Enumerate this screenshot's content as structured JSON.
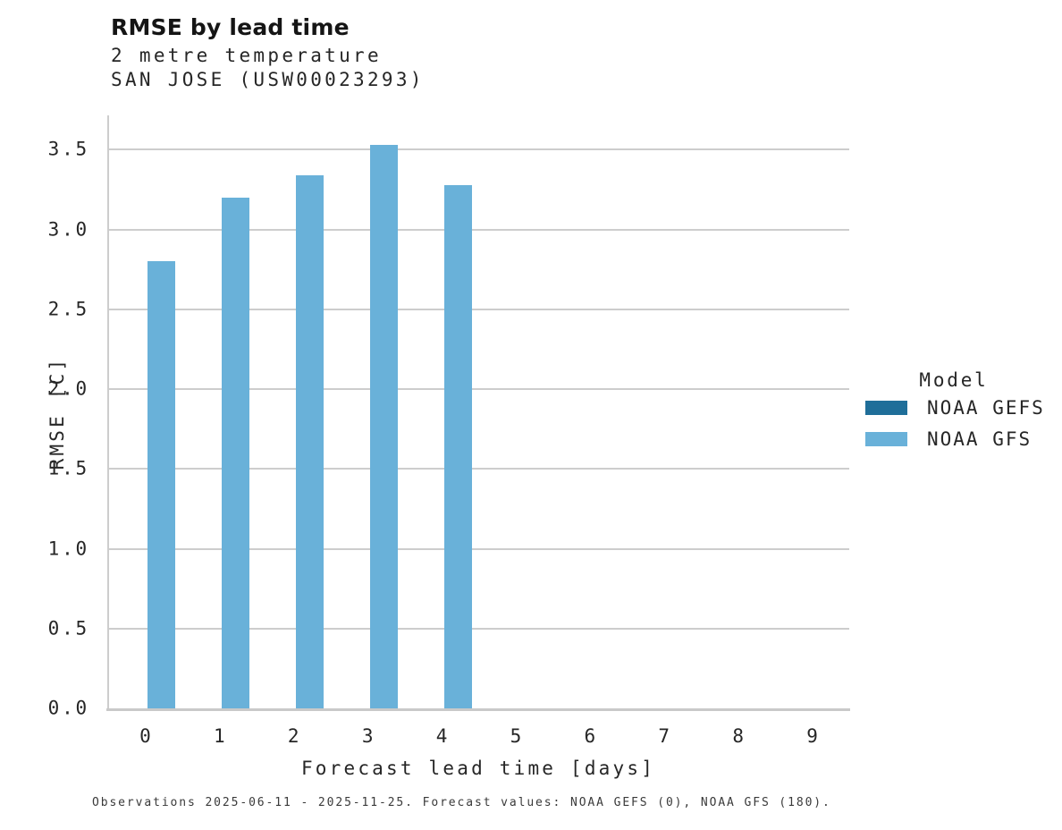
{
  "title": "RMSE by lead time",
  "subtitle_line1": "2 metre temperature",
  "subtitle_line2": "SAN JOSE (USW00023293)",
  "caption": "Observations 2025-06-11 - 2025-11-25. Forecast values: NOAA GEFS (0), NOAA GFS (180).",
  "colors": {
    "noaa_gefs": "#1f6e99",
    "noaa_gfs": "#69b1d9",
    "gridline": "#cdcdcd",
    "text": "#262626"
  },
  "chart_data": {
    "type": "bar",
    "title": "RMSE by lead time",
    "subtitle": [
      "2 metre temperature",
      "SAN JOSE (USW00023293)"
    ],
    "xlabel": "Forecast lead time [days]",
    "ylabel": "RMSE [C]",
    "categories": [
      "0",
      "1",
      "2",
      "3",
      "4",
      "5",
      "6",
      "7",
      "8",
      "9"
    ],
    "series": [
      {
        "name": "NOAA GEFS",
        "color": "#1f6e99",
        "values": [
          null,
          null,
          null,
          null,
          null,
          null,
          null,
          null,
          null,
          null
        ]
      },
      {
        "name": "NOAA GFS",
        "color": "#69b1d9",
        "values": [
          2.8,
          3.2,
          3.34,
          3.53,
          3.28,
          null,
          null,
          null,
          null,
          null
        ]
      }
    ],
    "ylim": [
      0,
      3.715
    ],
    "yticks": [
      0.0,
      0.5,
      1.0,
      1.5,
      2.0,
      2.5,
      3.0,
      3.5
    ],
    "ytick_labels": [
      "0.0",
      "0.5",
      "1.0",
      "1.5",
      "2.0",
      "2.5",
      "3.0",
      "3.5"
    ],
    "grid": true,
    "legend_title": "Model",
    "legend_position": "right"
  }
}
